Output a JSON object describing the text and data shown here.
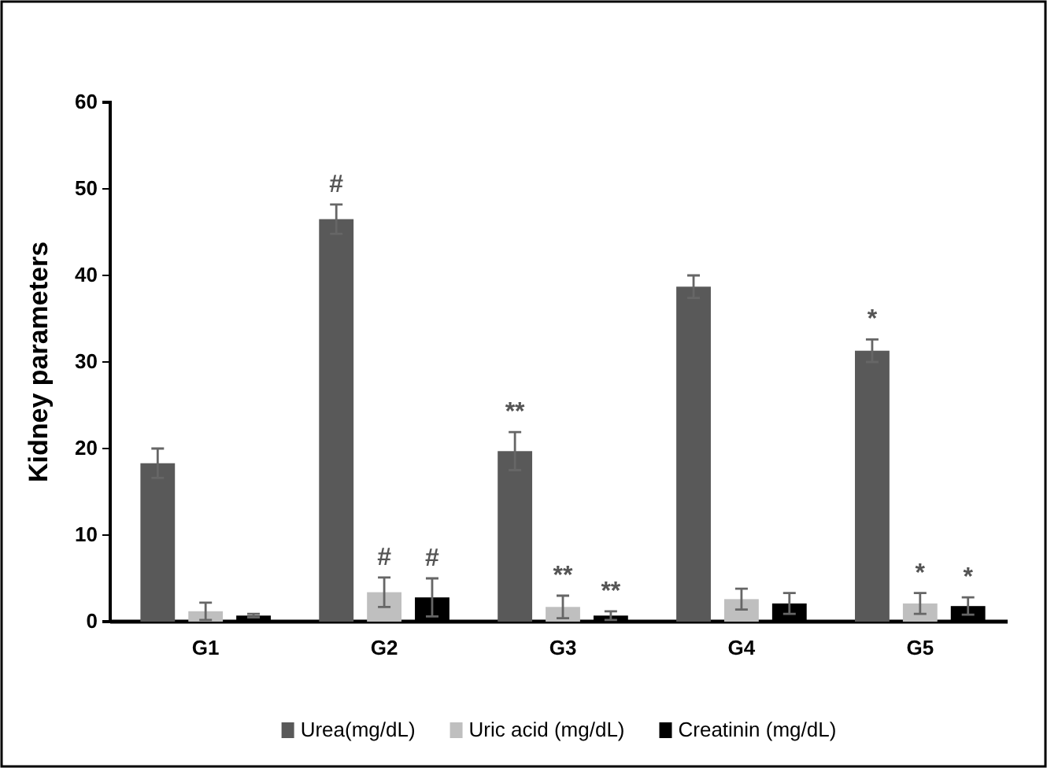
{
  "chart_data": {
    "type": "bar",
    "ylabel": "Kidney parameters",
    "categories": [
      "G1",
      "G2",
      "G3",
      "G4",
      "G5"
    ],
    "ylim": [
      0,
      60
    ],
    "yticks": [
      0,
      10,
      20,
      30,
      40,
      50,
      60
    ],
    "grid": false,
    "legend": "bottom",
    "series": [
      {
        "name": "Urea(mg/dL)",
        "color": "#595959",
        "values": [
          18.3,
          46.5,
          19.7,
          38.7,
          31.3
        ],
        "errors": [
          1.7,
          1.7,
          2.2,
          1.3,
          1.3
        ],
        "value_labels": [
          null,
          "#",
          "**",
          null,
          "*"
        ]
      },
      {
        "name": "Uric acid (mg/dL)",
        "color": "#bfbfbf",
        "values": [
          1.2,
          3.4,
          1.7,
          2.6,
          2.1
        ],
        "errors": [
          1.0,
          1.7,
          1.3,
          1.2,
          1.2
        ],
        "value_labels": [
          null,
          "#",
          "**",
          null,
          "*"
        ]
      },
      {
        "name": "Creatinin (mg/dL)",
        "color": "#000000",
        "values": [
          0.7,
          2.8,
          0.7,
          2.1,
          1.8
        ],
        "errors": [
          0.2,
          2.2,
          0.5,
          1.2,
          1.0
        ],
        "value_labels": [
          null,
          "#",
          "**",
          null,
          "*"
        ]
      }
    ]
  }
}
